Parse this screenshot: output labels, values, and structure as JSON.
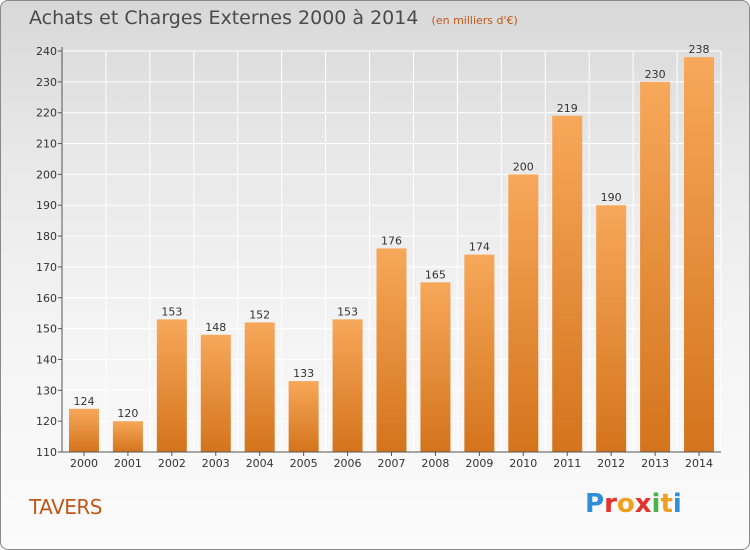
{
  "title": "Achats et Charges Externes 2000 à 2014",
  "subtitle": "(en milliers d'€)",
  "city": "TAVERS",
  "logo": {
    "text": "Proxiti",
    "letters": [
      "P",
      "r",
      "o",
      "x",
      "i",
      "t",
      "i"
    ],
    "colors": [
      "#2e8fd8",
      "#e5322d",
      "#f0a020",
      "#e5322d",
      "#49b34a",
      "#f0a020",
      "#2e8fd8"
    ]
  },
  "colors": {
    "bar_top": "#f7a85a",
    "bar_bottom": "#d4741c",
    "label": "#333333",
    "grid": "#ffffff",
    "axis": "#555555"
  },
  "chart_data": {
    "type": "bar",
    "title": "Achats et Charges Externes 2000 à 2014",
    "subtitle": "(en milliers d'€)",
    "categories": [
      "2000",
      "2001",
      "2002",
      "2003",
      "2004",
      "2005",
      "2006",
      "2007",
      "2008",
      "2009",
      "2010",
      "2011",
      "2012",
      "2013",
      "2014"
    ],
    "values": [
      124,
      120,
      153,
      148,
      152,
      133,
      153,
      176,
      165,
      174,
      200,
      219,
      190,
      230,
      238
    ],
    "ylim": [
      110,
      240
    ],
    "yticks": [
      110,
      120,
      130,
      140,
      150,
      160,
      170,
      180,
      190,
      200,
      210,
      220,
      230,
      240
    ],
    "grid": true,
    "data_labels": true,
    "xlabel": "",
    "ylabel": ""
  }
}
